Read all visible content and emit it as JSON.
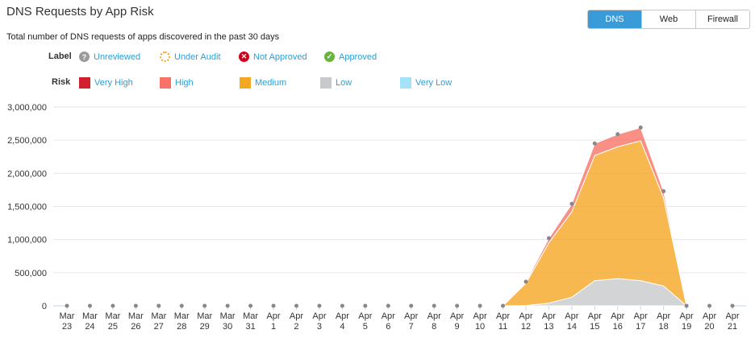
{
  "header": {
    "title": "DNS Requests by App Risk",
    "subtitle": "Total number of DNS requests of apps discovered in the past 30 days"
  },
  "tabs": [
    {
      "label": "DNS",
      "active": true
    },
    {
      "label": "Web"
    },
    {
      "label": "Firewall"
    }
  ],
  "label_legend": {
    "title": "Label",
    "items": [
      {
        "label": "Unreviewed",
        "icon": "question-icon",
        "color": "#9b9b9b"
      },
      {
        "label": "Under Audit",
        "icon": "dotted-circle-icon",
        "color": "#f5a623"
      },
      {
        "label": "Not Approved",
        "icon": "x-circle-icon",
        "color": "#d0021b"
      },
      {
        "label": "Approved",
        "icon": "check-circle-icon",
        "color": "#6ab43e"
      }
    ]
  },
  "chart_data": {
    "type": "area",
    "stacked": true,
    "title": "DNS Requests by App Risk",
    "legend_title": "Risk",
    "x": [
      "Mar 23",
      "Mar 24",
      "Mar 25",
      "Mar 26",
      "Mar 27",
      "Mar 28",
      "Mar 29",
      "Mar 30",
      "Mar 31",
      "Apr 1",
      "Apr 2",
      "Apr 3",
      "Apr 4",
      "Apr 5",
      "Apr 6",
      "Apr 7",
      "Apr 8",
      "Apr 9",
      "Apr 10",
      "Apr 11",
      "Apr 12",
      "Apr 13",
      "Apr 14",
      "Apr 15",
      "Apr 16",
      "Apr 17",
      "Apr 18",
      "Apr 19",
      "Apr 20",
      "Apr 21"
    ],
    "ylim": [
      0,
      3000000
    ],
    "yticks": [
      "0",
      "500,000",
      "1,000,000",
      "1,500,000",
      "2,000,000",
      "2,500,000",
      "3,000,000"
    ],
    "grid": true,
    "series": [
      {
        "name": "Very Low",
        "color": "#a6e1fa",
        "values": [
          0,
          0,
          0,
          0,
          0,
          0,
          0,
          0,
          0,
          0,
          0,
          0,
          0,
          0,
          0,
          0,
          0,
          0,
          0,
          0,
          0,
          0,
          0,
          0,
          0,
          0,
          0,
          0,
          0,
          0
        ]
      },
      {
        "name": "Low",
        "color": "#c8c9cc",
        "values": [
          0,
          0,
          0,
          0,
          0,
          0,
          0,
          0,
          0,
          0,
          0,
          0,
          0,
          0,
          0,
          0,
          0,
          0,
          0,
          0,
          5000,
          40000,
          130000,
          380000,
          410000,
          380000,
          300000,
          0,
          0,
          0
        ]
      },
      {
        "name": "Medium",
        "color": "#f5a623",
        "values": [
          0,
          0,
          0,
          0,
          0,
          0,
          0,
          0,
          0,
          0,
          0,
          0,
          0,
          0,
          0,
          0,
          0,
          0,
          0,
          0,
          335000,
          910000,
          1290000,
          1890000,
          1990000,
          2110000,
          1330000,
          0,
          0,
          0
        ]
      },
      {
        "name": "High",
        "color": "#f77367",
        "values": [
          0,
          0,
          0,
          0,
          0,
          0,
          0,
          0,
          0,
          0,
          0,
          0,
          0,
          0,
          0,
          0,
          0,
          0,
          0,
          0,
          24000,
          70000,
          120000,
          180000,
          190000,
          200000,
          100000,
          0,
          0,
          0
        ]
      },
      {
        "name": "Very High",
        "color": "#d0202e",
        "values": [
          0,
          0,
          0,
          0,
          0,
          0,
          0,
          0,
          0,
          0,
          0,
          0,
          0,
          0,
          0,
          0,
          0,
          0,
          0,
          0,
          0,
          0,
          0,
          0,
          0,
          0,
          0,
          0,
          0,
          0
        ]
      }
    ]
  }
}
